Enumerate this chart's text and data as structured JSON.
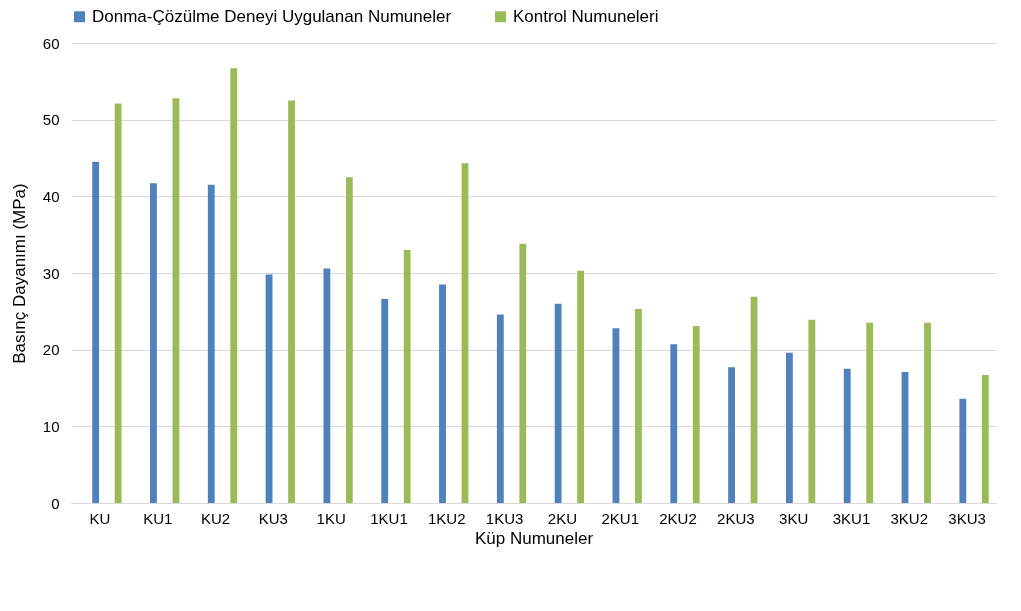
{
  "chart_data": {
    "type": "bar",
    "xlabel": "Küp Numuneler",
    "ylabel": "Basınç Dayanımı (MPa)",
    "categories": [
      "KU",
      "KU1",
      "KU2",
      "KU3",
      "1KU",
      "1KU1",
      "1KU2",
      "1KU3",
      "2KU",
      "2KU1",
      "2KU2",
      "2KU3",
      "3KU",
      "3KU1",
      "3KU2",
      "3KU3"
    ],
    "series": [
      {
        "name": "Donma-Çözülme Deneyi Uygulanan Numuneler",
        "color": "#4f81bd",
        "values": [
          44.5,
          41.7,
          41.5,
          29.8,
          30.6,
          26.6,
          28.5,
          24.6,
          26.0,
          22.8,
          20.7,
          17.7,
          19.6,
          17.5,
          17.1,
          13.6
        ]
      },
      {
        "name": "Kontrol Numuneleri",
        "color": "#9bbb59",
        "values": [
          52.1,
          52.8,
          56.7,
          52.5,
          42.5,
          33.0,
          44.3,
          33.8,
          30.3,
          25.3,
          23.1,
          26.9,
          23.9,
          23.5,
          23.5,
          16.7
        ]
      }
    ],
    "ylim": [
      0,
      60
    ],
    "yticks": [
      0,
      10,
      20,
      30,
      40,
      50,
      60
    ],
    "grid": "y",
    "legend": "top"
  }
}
